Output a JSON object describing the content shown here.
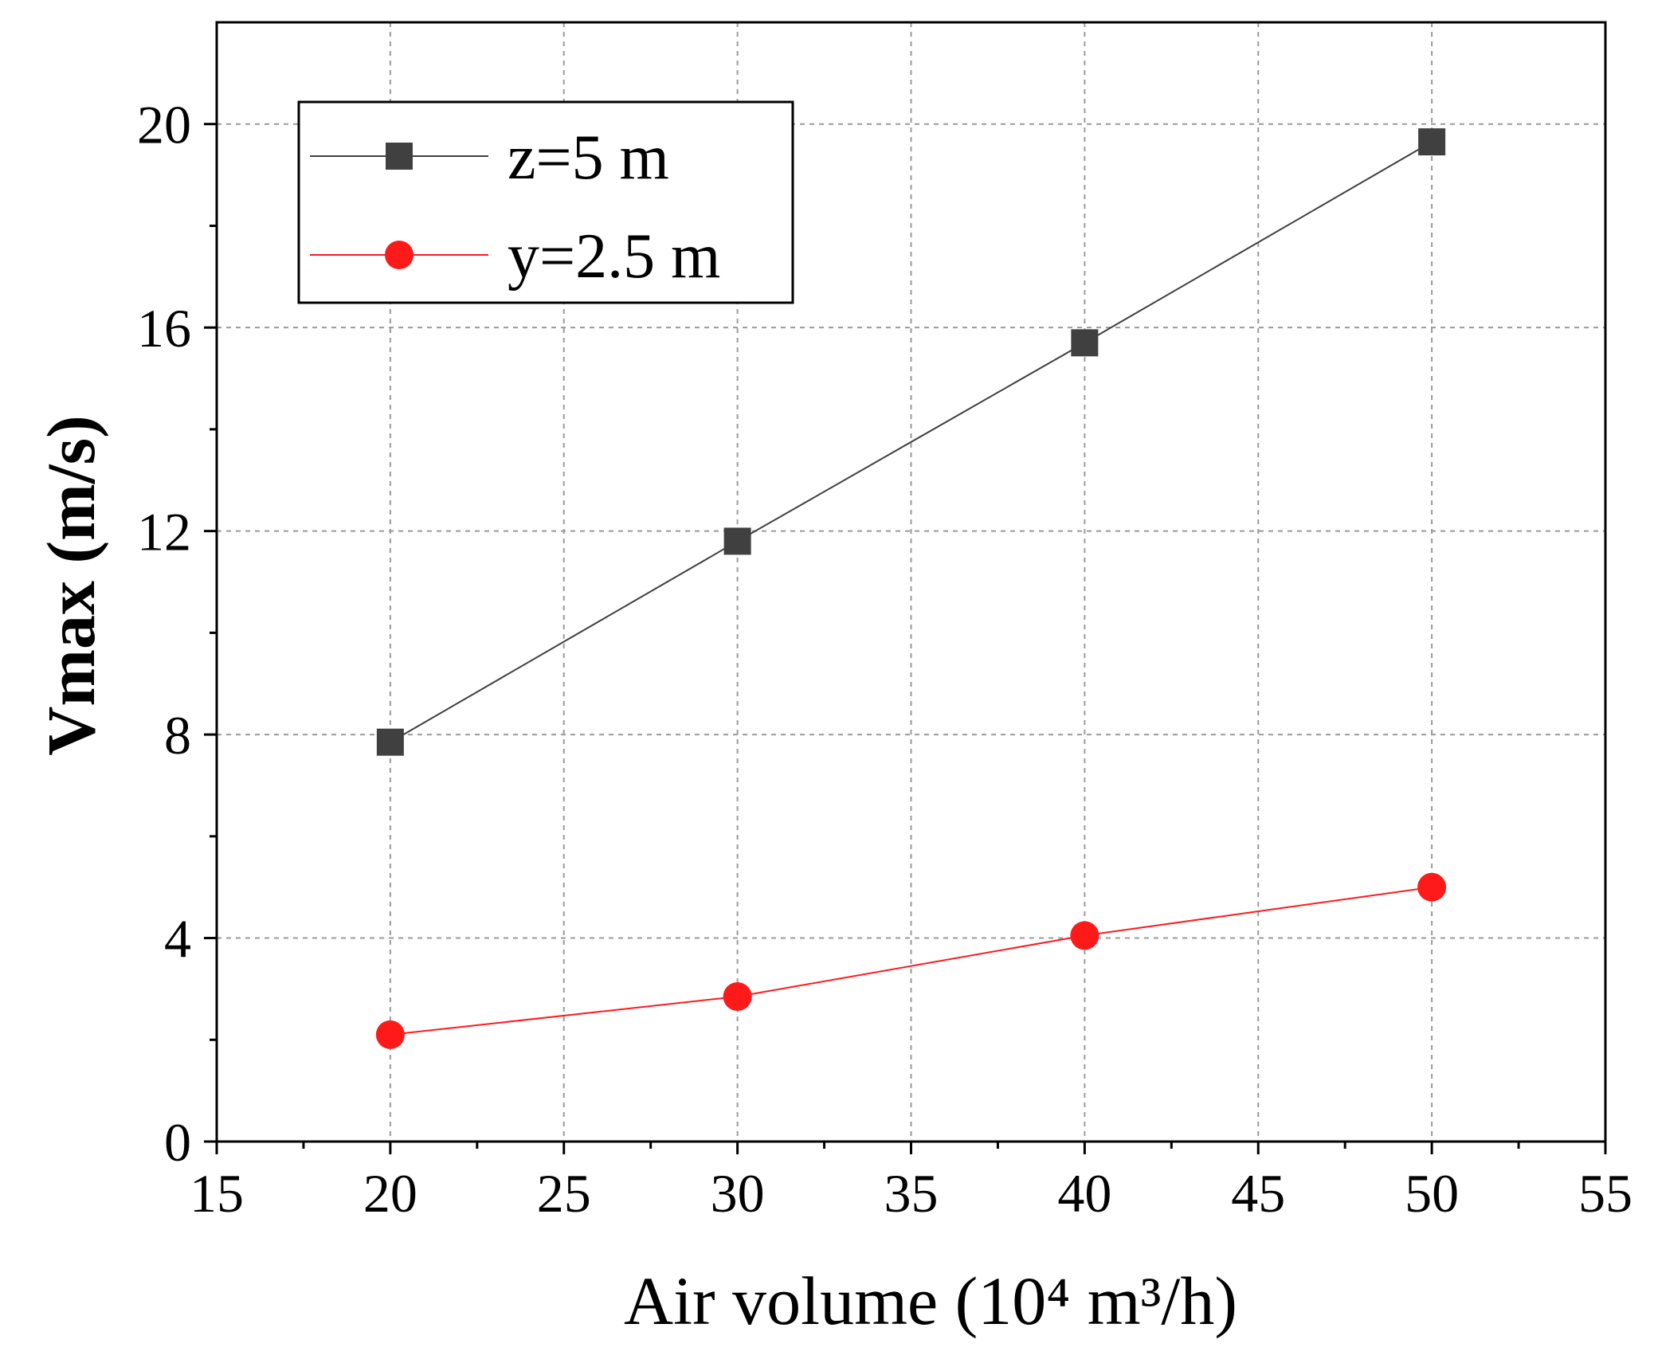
{
  "chart_data": {
    "type": "line",
    "xlabel": "Air volume (10⁴ m³/h)",
    "ylabel": "Vmax (m/s)",
    "xlim": [
      15,
      55
    ],
    "ylim": [
      0,
      22
    ],
    "x_ticks": [
      15,
      20,
      25,
      30,
      35,
      40,
      45,
      50,
      55
    ],
    "y_ticks": [
      0,
      4,
      8,
      12,
      16,
      20
    ],
    "x_tick_labels": [
      "15",
      "20",
      "25",
      "30",
      "35",
      "40",
      "45",
      "50",
      "55"
    ],
    "y_tick_labels": [
      "0",
      "4",
      "8",
      "12",
      "16",
      "20"
    ],
    "grid": true,
    "legend_position": "top-left",
    "x": [
      20,
      30,
      40,
      50
    ],
    "series": [
      {
        "name": "z=5 m",
        "values": [
          7.85,
          11.8,
          15.7,
          19.65
        ],
        "color": "#404040",
        "marker": "square"
      },
      {
        "name": "y=2.5 m",
        "values": [
          2.1,
          2.85,
          4.05,
          5.0
        ],
        "color": "#ff1a1a",
        "marker": "circle"
      }
    ]
  }
}
